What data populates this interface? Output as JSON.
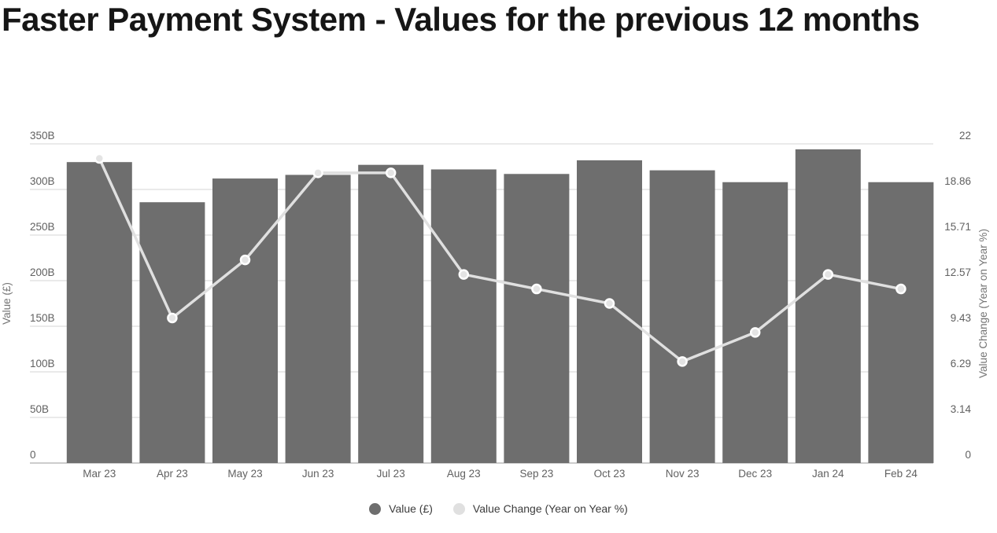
{
  "title": "Faster Payment System - Values for the previous 12 months",
  "chart_data": {
    "type": "bar",
    "categories": [
      "Mar 23",
      "Apr 23",
      "May 23",
      "Jun 23",
      "Jul 23",
      "Aug 23",
      "Sep 23",
      "Oct 23",
      "Nov 23",
      "Dec 23",
      "Jan 24",
      "Feb 24"
    ],
    "series": [
      {
        "name": "Value (£)",
        "type": "bar",
        "axis": "left",
        "unit": "billions £",
        "values": [
          330,
          286,
          312,
          316,
          327,
          322,
          317,
          332,
          321,
          308,
          344,
          308
        ]
      },
      {
        "name": "Value Change (Year on Year %)",
        "type": "line",
        "axis": "right",
        "unit": "%",
        "values": [
          21,
          10,
          14,
          20,
          20,
          13,
          12,
          11,
          7,
          9,
          13,
          12
        ]
      }
    ],
    "left_axis": {
      "label": "Value (£)",
      "min": 0,
      "max": 350,
      "ticks": [
        "350B",
        "300B",
        "250B",
        "200B",
        "150B",
        "100B",
        "50B",
        "0"
      ]
    },
    "right_axis": {
      "label": "Value Change (Year on Year %)",
      "min": 0,
      "max": 22,
      "ticks": [
        "22",
        "18.86",
        "15.71",
        "12.57",
        "9.43",
        "6.29",
        "3.14",
        "0"
      ]
    },
    "legend": [
      "Value (£)",
      "Value Change (Year on Year %)"
    ],
    "legend_position": "bottom",
    "grid": true
  },
  "colors": {
    "background": "#ffffff",
    "title_text": "#161616",
    "bar": "#6e6e6e",
    "line": "#e0e0e0",
    "dot_fill": "#e4e4e4",
    "dot_stroke": "#ffffff",
    "gridline": "#e3e3e3",
    "baseline": "#cccccc",
    "tick_text": "#616161",
    "axis_title_text": "#757575",
    "legend_text": "#3c3c3c"
  }
}
